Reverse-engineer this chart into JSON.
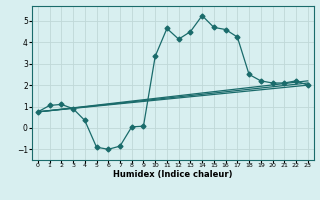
{
  "title": "",
  "xlabel": "Humidex (Indice chaleur)",
  "ylabel": "",
  "xlim": [
    -0.5,
    23.5
  ],
  "ylim": [
    -1.5,
    5.7
  ],
  "xticks": [
    0,
    1,
    2,
    3,
    4,
    5,
    6,
    7,
    8,
    9,
    10,
    11,
    12,
    13,
    14,
    15,
    16,
    17,
    18,
    19,
    20,
    21,
    22,
    23
  ],
  "yticks": [
    -1,
    0,
    1,
    2,
    3,
    4,
    5
  ],
  "bg_color": "#d8eff0",
  "grid_color": "#c0d8d8",
  "line_color": "#1a6b6b",
  "line1_x": [
    0,
    1,
    2,
    3,
    4,
    5,
    6,
    7,
    8,
    9,
    10,
    11,
    12,
    13,
    14,
    15,
    16,
    17,
    18,
    19,
    20,
    21,
    22,
    23
  ],
  "line1_y": [
    0.75,
    1.05,
    1.1,
    0.9,
    0.35,
    -0.9,
    -1.0,
    -0.85,
    0.05,
    0.08,
    3.35,
    4.65,
    4.15,
    4.5,
    5.25,
    4.7,
    4.6,
    4.25,
    2.5,
    2.2,
    2.1,
    2.1,
    2.2,
    2.0
  ],
  "line2_x": [
    0,
    23
  ],
  "line2_y": [
    0.75,
    2.0
  ],
  "line3_x": [
    0,
    23
  ],
  "line3_y": [
    0.75,
    2.1
  ],
  "line4_x": [
    0,
    23
  ],
  "line4_y": [
    0.75,
    2.2
  ]
}
